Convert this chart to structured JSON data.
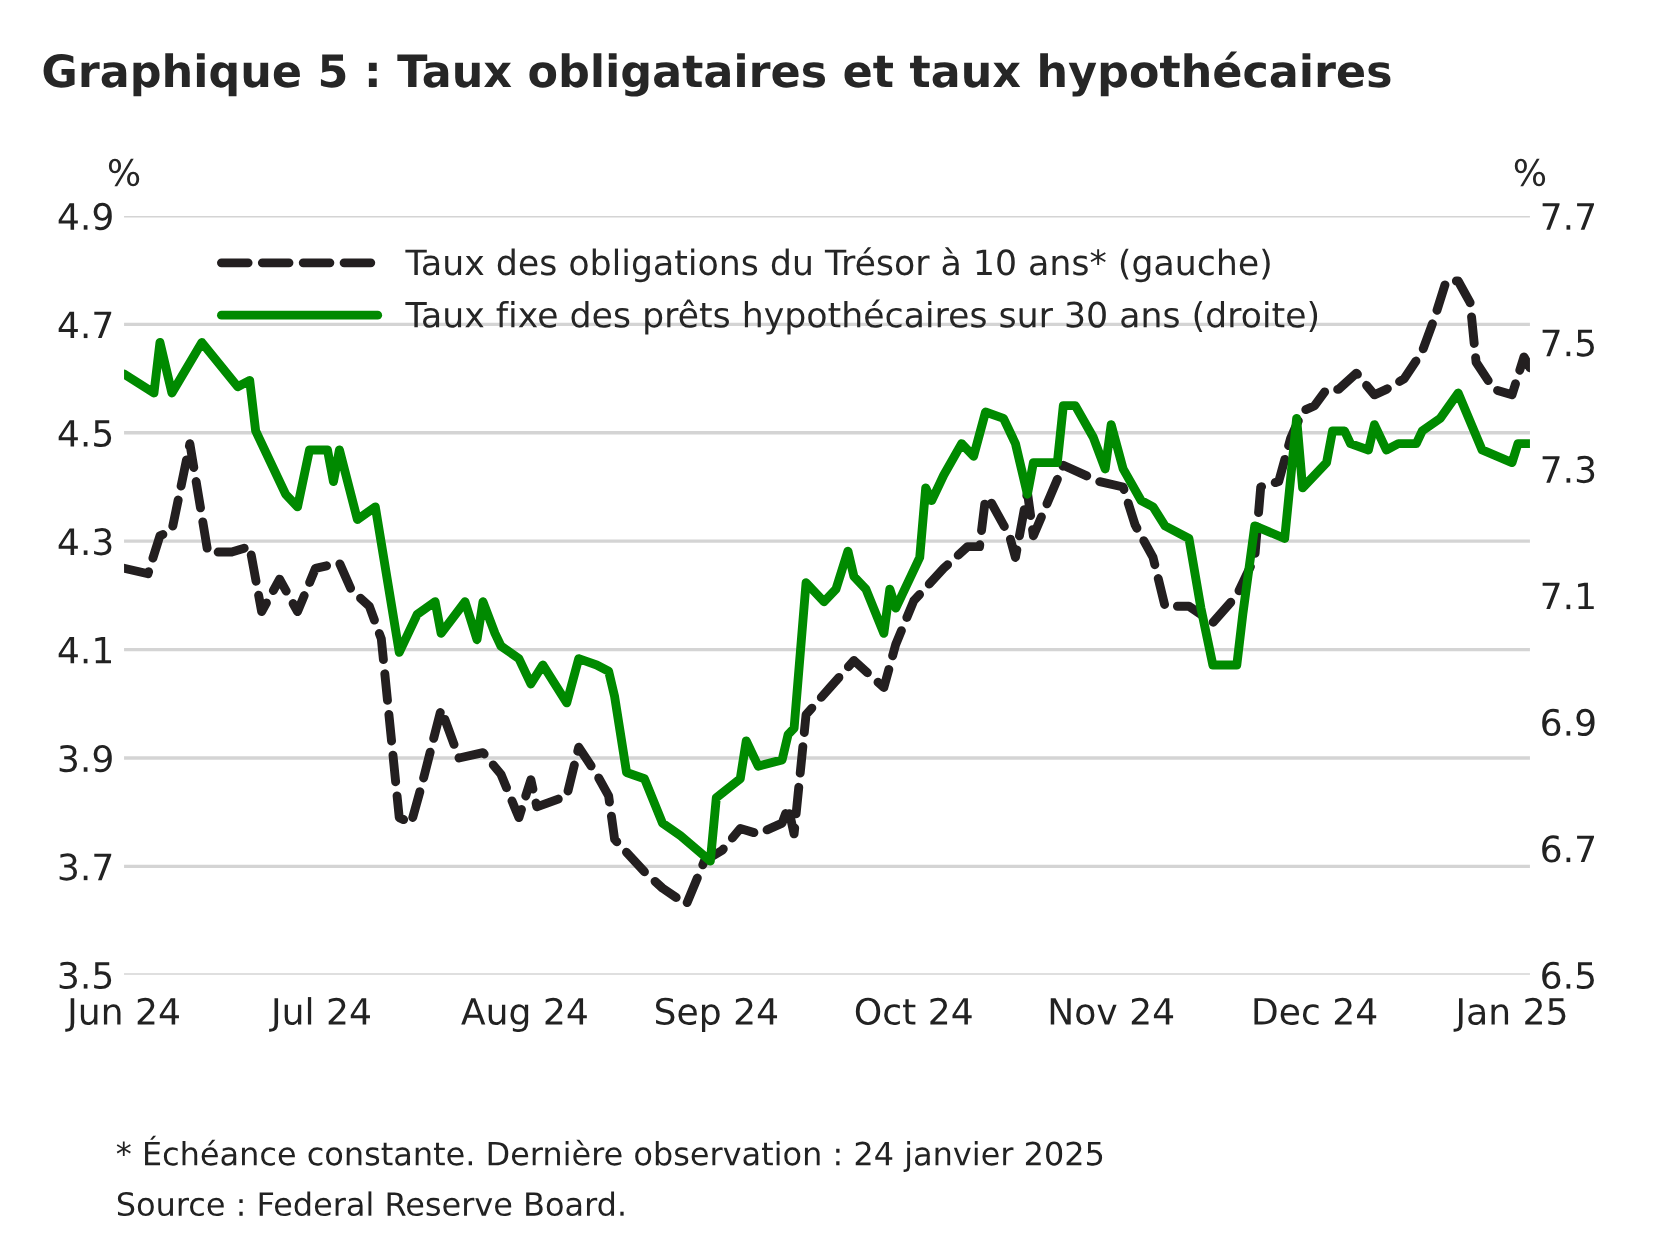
{
  "chart_data": {
    "type": "line",
    "title": "Graphique 5 : Taux obligataires et taux hypothécaires",
    "ylabel": "%",
    "y2label": "%",
    "xlim": [
      "2024-06-03",
      "2025-01-24"
    ],
    "xticks": [
      {
        "value": "2024-06-03",
        "label": "Jun 24"
      },
      {
        "value": "2024-07-06",
        "label": "Jul 24"
      },
      {
        "value": "2024-08-09",
        "label": "Aug 24"
      },
      {
        "value": "2024-09-10",
        "label": "Sep 24"
      },
      {
        "value": "2024-10-13",
        "label": "Oct 24"
      },
      {
        "value": "2024-11-15",
        "label": "Nov 24"
      },
      {
        "value": "2024-12-19",
        "label": "Dec 24"
      },
      {
        "value": "2025-01-21",
        "label": "Jan 25"
      }
    ],
    "ylim": [
      3.5,
      4.9
    ],
    "yticks": [
      3.5,
      3.7,
      3.9,
      4.1,
      4.3,
      4.5,
      4.7,
      4.9
    ],
    "y2lim": [
      6.5,
      7.7
    ],
    "y2ticks": [
      6.5,
      6.7,
      6.9,
      7.1,
      7.3,
      7.5,
      7.7
    ],
    "grid": "y",
    "legend": "top",
    "marker": "none",
    "series": [
      {
        "name": "Taux des obligations du Trésor à 10 ans* (gauche)",
        "color": "#231f20",
        "line_style": "dashed",
        "x": [
          "2024-06-03",
          "2024-06-07",
          "2024-06-09",
          "2024-06-11",
          "2024-06-14",
          "2024-06-17",
          "2024-06-21",
          "2024-06-24",
          "2024-06-26",
          "2024-06-27",
          "2024-06-29",
          "2024-07-02",
          "2024-07-05",
          "2024-07-09",
          "2024-07-11",
          "2024-07-14",
          "2024-07-16",
          "2024-07-19",
          "2024-07-21",
          "2024-07-23",
          "2024-07-26",
          "2024-07-29",
          "2024-08-02",
          "2024-08-05",
          "2024-08-08",
          "2024-08-10",
          "2024-08-11",
          "2024-08-16",
          "2024-08-18",
          "2024-08-21",
          "2024-08-23",
          "2024-08-24",
          "2024-08-29",
          "2024-09-01",
          "2024-09-05",
          "2024-09-08",
          "2024-09-11",
          "2024-09-14",
          "2024-09-17",
          "2024-09-21",
          "2024-09-22",
          "2024-09-23",
          "2024-09-25",
          "2024-09-29",
          "2024-10-03",
          "2024-10-08",
          "2024-10-10",
          "2024-10-13",
          "2024-10-18",
          "2024-10-22",
          "2024-10-24",
          "2024-10-25",
          "2024-10-26",
          "2024-10-29",
          "2024-10-30",
          "2024-11-01",
          "2024-11-02",
          "2024-11-07",
          "2024-11-11",
          "2024-11-13",
          "2024-11-17",
          "2024-11-19",
          "2024-11-22",
          "2024-11-24",
          "2024-11-28",
          "2024-12-02",
          "2024-12-06",
          "2024-12-09",
          "2024-12-10",
          "2024-12-13",
          "2024-12-15",
          "2024-12-17",
          "2024-12-19",
          "2024-12-21",
          "2024-12-23",
          "2024-12-26",
          "2024-12-29",
          "2024-12-31",
          "2025-01-03",
          "2025-01-06",
          "2025-01-08",
          "2025-01-10",
          "2025-01-12",
          "2025-01-14",
          "2025-01-15",
          "2025-01-18",
          "2025-01-21",
          "2025-01-23",
          "2025-01-24"
        ],
        "values": [
          4.25,
          4.24,
          4.31,
          4.32,
          4.48,
          4.28,
          4.28,
          4.29,
          4.17,
          4.19,
          4.23,
          4.17,
          4.25,
          4.26,
          4.21,
          4.18,
          4.12,
          3.79,
          3.78,
          3.86,
          3.99,
          3.9,
          3.91,
          3.87,
          3.79,
          3.86,
          3.81,
          3.83,
          3.92,
          3.87,
          3.83,
          3.75,
          3.69,
          3.66,
          3.63,
          3.71,
          3.73,
          3.77,
          3.76,
          3.78,
          3.81,
          3.76,
          3.98,
          4.03,
          4.08,
          4.03,
          4.11,
          4.19,
          4.25,
          4.29,
          4.29,
          4.38,
          4.37,
          4.31,
          4.27,
          4.39,
          4.31,
          4.44,
          4.42,
          4.41,
          4.4,
          4.33,
          4.27,
          4.18,
          4.18,
          4.15,
          4.2,
          4.27,
          4.4,
          4.41,
          4.49,
          4.54,
          4.55,
          4.58,
          4.58,
          4.61,
          4.57,
          4.58,
          4.6,
          4.65,
          4.71,
          4.78,
          4.78,
          4.74,
          4.63,
          4.58,
          4.57,
          4.64,
          4.62
        ]
      },
      {
        "name": "Taux fixe des prêts hypothécaires sur 30 ans (droite)",
        "color": "#008a00",
        "line_style": "solid",
        "axis": "y2",
        "x": [
          "2024-06-03",
          "2024-06-08",
          "2024-06-09",
          "2024-06-11",
          "2024-06-16",
          "2024-06-22",
          "2024-06-24",
          "2024-06-25",
          "2024-06-30",
          "2024-07-02",
          "2024-07-04",
          "2024-07-07",
          "2024-07-08",
          "2024-07-09",
          "2024-07-12",
          "2024-07-15",
          "2024-07-19",
          "2024-07-22",
          "2024-07-25",
          "2024-07-26",
          "2024-07-30",
          "2024-08-01",
          "2024-08-02",
          "2024-08-04",
          "2024-08-05",
          "2024-08-08",
          "2024-08-10",
          "2024-08-12",
          "2024-08-16",
          "2024-08-18",
          "2024-08-21",
          "2024-08-23",
          "2024-08-24",
          "2024-08-26",
          "2024-08-29",
          "2024-09-01",
          "2024-09-04",
          "2024-09-09",
          "2024-09-10",
          "2024-09-14",
          "2024-09-15",
          "2024-09-17",
          "2024-09-21",
          "2024-09-22",
          "2024-09-23",
          "2024-09-25",
          "2024-09-28",
          "2024-09-30",
          "2024-10-02",
          "2024-10-03",
          "2024-10-05",
          "2024-10-08",
          "2024-10-09",
          "2024-10-10",
          "2024-10-13",
          "2024-10-14",
          "2024-10-15",
          "2024-10-16",
          "2024-10-18",
          "2024-10-21",
          "2024-10-23",
          "2024-10-25",
          "2024-10-28",
          "2024-10-30",
          "2024-11-01",
          "2024-11-02",
          "2024-11-06",
          "2024-11-07",
          "2024-11-09",
          "2024-11-12",
          "2024-11-14",
          "2024-11-15",
          "2024-11-17",
          "2024-11-20",
          "2024-11-22",
          "2024-11-24",
          "2024-11-28",
          "2024-11-30",
          "2024-12-02",
          "2024-12-06",
          "2024-12-07",
          "2024-12-09",
          "2024-12-14",
          "2024-12-16",
          "2024-12-17",
          "2024-12-21",
          "2024-12-22",
          "2024-12-24",
          "2024-12-25",
          "2024-12-28",
          "2024-12-29",
          "2024-12-31",
          "2025-01-02",
          "2025-01-05",
          "2025-01-06",
          "2025-01-09",
          "2025-01-12",
          "2025-01-16",
          "2025-01-21",
          "2025-01-22",
          "2025-01-24"
        ],
        "values": [
          7.45,
          7.42,
          7.5,
          7.42,
          7.5,
          7.43,
          7.44,
          7.36,
          7.26,
          7.24,
          7.33,
          7.33,
          7.28,
          7.33,
          7.22,
          7.24,
          7.01,
          7.07,
          7.09,
          7.04,
          7.09,
          7.03,
          7.09,
          7.04,
          7.02,
          7.0,
          6.96,
          6.99,
          6.93,
          7.0,
          6.99,
          6.98,
          6.94,
          6.82,
          6.81,
          6.74,
          6.72,
          6.68,
          6.78,
          6.81,
          6.87,
          6.83,
          6.84,
          6.88,
          6.89,
          7.12,
          7.09,
          7.11,
          7.17,
          7.13,
          7.11,
          7.04,
          7.11,
          7.08,
          7.14,
          7.16,
          7.27,
          7.25,
          7.29,
          7.34,
          7.32,
          7.39,
          7.38,
          7.34,
          7.26,
          7.31,
          7.31,
          7.4,
          7.4,
          7.35,
          7.3,
          7.37,
          7.3,
          7.25,
          7.24,
          7.21,
          7.19,
          7.08,
          6.99,
          6.99,
          7.07,
          7.21,
          7.19,
          7.38,
          7.27,
          7.31,
          7.36,
          7.36,
          7.34,
          7.33,
          7.37,
          7.33,
          7.34,
          7.34,
          7.36,
          7.38,
          7.42,
          7.33,
          7.31,
          7.34,
          7.34
        ]
      }
    ],
    "annotations": [
      "* Échéance constante. Dernière observation : 24 janvier 2025",
      "Source : Federal Reserve Board."
    ]
  }
}
